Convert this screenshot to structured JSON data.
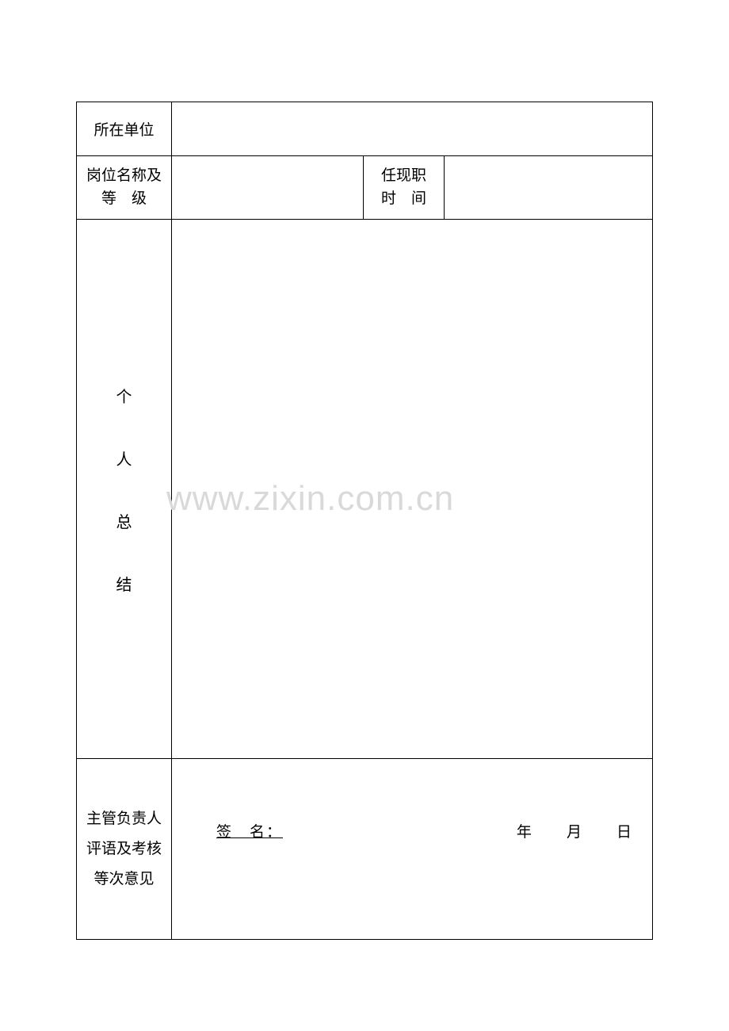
{
  "form": {
    "row1": {
      "label": "所在单位"
    },
    "row2": {
      "label_a_line1": "岗位名称及",
      "label_a_line2": "等　级",
      "label_b_line1": "任现职",
      "label_b_line2": "时　间"
    },
    "row3": {
      "char1": "个",
      "char2": "人",
      "char3": "总",
      "char4": "结"
    },
    "row4": {
      "label_line1": "主管负责人",
      "label_line2": "评语及考核",
      "label_line3": "等次意见",
      "signature_label": "签　名：",
      "date_year": "年",
      "date_month": "月",
      "date_day": "日"
    }
  },
  "watermark": "www.zixin.com.cn",
  "colors": {
    "border": "#000000",
    "text": "#000000",
    "background": "#ffffff",
    "watermark": "#d9d9d9"
  }
}
